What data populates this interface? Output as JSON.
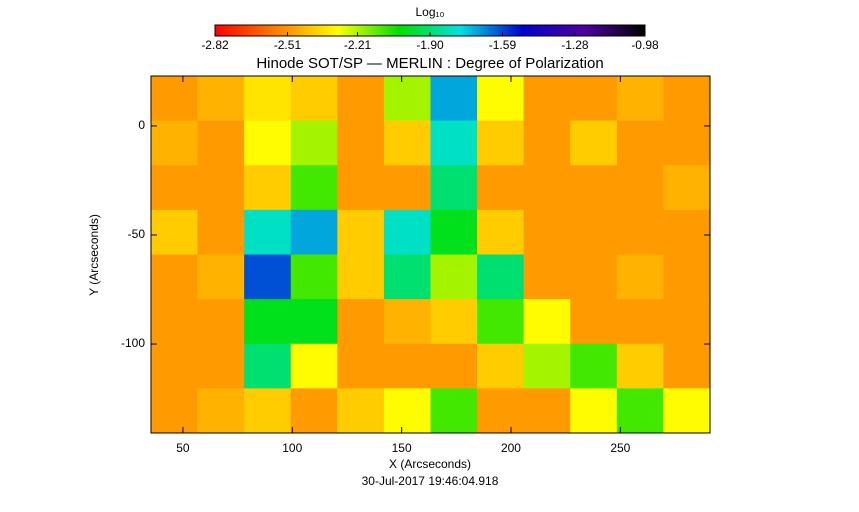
{
  "chart_data": {
    "type": "heatmap",
    "title": "Hinode SOT/SP — MERLIN : Degree of Polarization",
    "x_label": "X (Arcseconds)",
    "y_label": "Y (Arcseconds)",
    "footer": "30-Jul-2017 19:46:04.918",
    "colorbar_label": "Log₁₀",
    "colormap": [
      "#ff0000",
      "#ff7f00",
      "#ffff00",
      "#00e000",
      "#00e0e0",
      "#0000d0",
      "#5000a0",
      "#000000"
    ],
    "clim": [
      -2.82,
      -0.98
    ],
    "cticks": [
      -2.82,
      -2.51,
      -2.21,
      {
        "value": -1.9,
        "label": "-1.90"
      },
      -1.59,
      -1.28,
      -0.98
    ],
    "xlim": [
      35.4,
      291
    ],
    "ylim": [
      -140.8,
      22.9
    ],
    "xticks": [
      50,
      100,
      150,
      200,
      250
    ],
    "yticks": [
      0,
      -50,
      -100
    ],
    "values": [
      [
        -2.5,
        -2.45,
        -2.35,
        -2.4,
        -2.5,
        -2.2,
        -1.7,
        -2.3,
        -2.5,
        -2.5,
        -2.45,
        -2.5
      ],
      [
        -2.45,
        -2.5,
        -2.3,
        -2.2,
        -2.5,
        -2.4,
        -1.8,
        -2.4,
        -2.5,
        -2.4,
        -2.5,
        -2.5
      ],
      [
        -2.5,
        -2.5,
        -2.4,
        -2.1,
        -2.5,
        -2.5,
        -1.9,
        -2.5,
        -2.5,
        -2.5,
        -2.5,
        -2.45
      ],
      [
        -2.4,
        -2.5,
        -1.8,
        -1.7,
        -2.4,
        -1.8,
        -2.0,
        -2.4,
        -2.5,
        -2.5,
        -2.5,
        -2.5
      ],
      [
        -2.5,
        -2.45,
        -1.6,
        -2.1,
        -2.4,
        -1.9,
        -2.2,
        -1.9,
        -2.5,
        -2.5,
        -2.45,
        -2.5
      ],
      [
        -2.5,
        -2.5,
        -2.0,
        -2.0,
        -2.5,
        -2.45,
        -2.4,
        -2.1,
        -2.3,
        -2.5,
        -2.5,
        -2.5
      ],
      [
        -2.5,
        -2.5,
        -1.9,
        -2.3,
        -2.5,
        -2.5,
        -2.5,
        -2.4,
        -2.2,
        -2.1,
        -2.4,
        -2.5
      ],
      [
        -2.5,
        -2.45,
        -2.4,
        -2.5,
        -2.4,
        -2.3,
        -2.1,
        -2.5,
        -2.5,
        -2.3,
        -2.1,
        -2.3
      ]
    ]
  }
}
